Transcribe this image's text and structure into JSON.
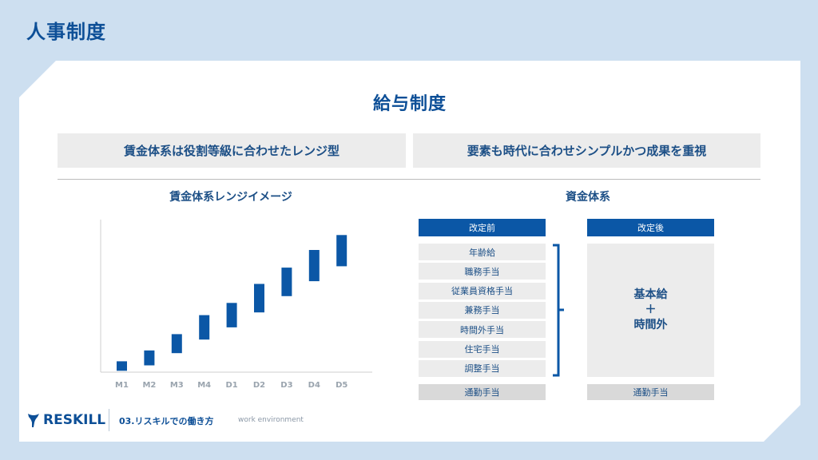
{
  "page_title": "人事制度",
  "main_title": "給与制度",
  "banners": {
    "left": "賃金体系は役割等級に合わせたレンジ型",
    "right": "要素も時代に合わせシンプルかつ成果を重視"
  },
  "range_chart": {
    "title": "賃金体系レンジイメージ"
  },
  "wage_table": {
    "title": "資金体系",
    "before_header": "改定前",
    "after_header": "改定後",
    "before_items": [
      "年齢給",
      "職務手当",
      "従業員資格手当",
      "兼務手当",
      "時間外手当",
      "住宅手当",
      "調整手当"
    ],
    "after_lines": [
      "基本給",
      "＋",
      "時間外"
    ],
    "commute_before": "通勤手当",
    "commute_after": "通勤手当"
  },
  "footer": {
    "logo_text": "RESKILL",
    "section": "03.リスキルでの働き方",
    "subtitle": "work environment"
  },
  "colors": {
    "background": "#cddff0",
    "brand_blue": "#0d4f97",
    "bar_blue": "#0b57a6",
    "panel_gray": "#ececec"
  },
  "chart_data": {
    "type": "bar",
    "subtype": "floating-range",
    "categories": [
      "M1",
      "M2",
      "M3",
      "M4",
      "D1",
      "D2",
      "D3",
      "D4",
      "D5"
    ],
    "ranges": [
      [
        1,
        8
      ],
      [
        5,
        16
      ],
      [
        14,
        28
      ],
      [
        24,
        42
      ],
      [
        33,
        51
      ],
      [
        44,
        65
      ],
      [
        56,
        77
      ],
      [
        67,
        90
      ],
      [
        78,
        101
      ]
    ],
    "ylim": [
      0,
      110
    ],
    "y_ticks_shown": false,
    "grid": false,
    "xlabel": "",
    "ylabel": "",
    "title": "賃金体系レンジイメージ"
  }
}
